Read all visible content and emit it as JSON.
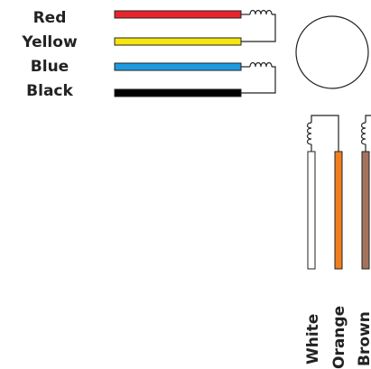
{
  "horizontal_wires": [
    {
      "label": "Red",
      "color": "#e8252c"
    },
    {
      "label": "Yellow",
      "color": "#f5e60f"
    },
    {
      "label": "Blue",
      "color": "#1e9be0"
    },
    {
      "label": "Black",
      "color": "#000000"
    }
  ],
  "vertical_wires": [
    {
      "label": "White",
      "color": "#ffffff"
    },
    {
      "label": "Orange",
      "color": "#f07f1d"
    },
    {
      "label": "Brown",
      "color": "#a2735c"
    }
  ],
  "colors": {
    "outline": "#222222",
    "text": "#222222"
  },
  "icons": {
    "coil": "coil-icon",
    "motor": "motor-circle-icon"
  }
}
